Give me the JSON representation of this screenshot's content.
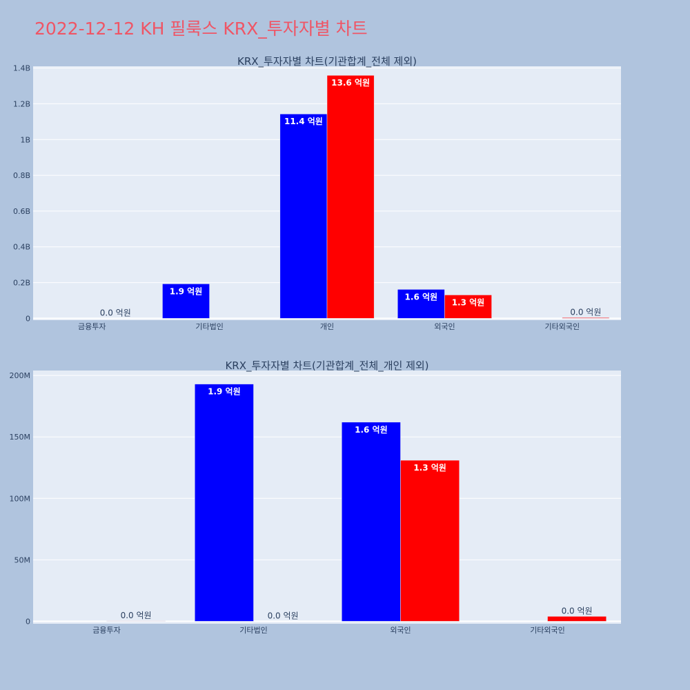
{
  "page": {
    "title": "2022-12-12 KH 필룩스 KRX_투자자별 차트"
  },
  "chart_data": [
    {
      "type": "bar",
      "title": "KRX_투자자별 차트(기관합계_전체 제외)",
      "categories": [
        "금융투자",
        "기타법인",
        "개인",
        "외국인",
        "기타외국인"
      ],
      "series": [
        {
          "color": "#0000ff",
          "values": [
            0,
            193000000,
            1143000000,
            162000000,
            0
          ],
          "labels": [
            "",
            "1.9 억원",
            "11.4 억원",
            "1.6 억원",
            ""
          ]
        },
        {
          "color": "#ff0000",
          "values": [
            0,
            0,
            1359000000,
            131000000,
            4000000
          ],
          "labels": [
            "0.0 억원",
            "",
            "13.6 억원",
            "1.3 억원",
            "0.0 억원"
          ]
        }
      ],
      "ylim": [
        -10000000,
        1410000000
      ],
      "yticks": [
        0,
        200000000,
        400000000,
        600000000,
        800000000,
        1000000000,
        1200000000,
        1400000000
      ],
      "yticklabels": [
        "0",
        "0.2B",
        "0.4B",
        "0.6B",
        "0.8B",
        "1B",
        "1.2B",
        "1.4B"
      ]
    },
    {
      "type": "bar",
      "title": "KRX_투자자별 차트(기관합계_전체_개인 제외)",
      "categories": [
        "금융투자",
        "기타법인",
        "외국인",
        "기타외국인"
      ],
      "series": [
        {
          "color": "#0000ff",
          "values": [
            0,
            193000000,
            162000000,
            0
          ],
          "labels": [
            "",
            "1.9 억원",
            "1.6 억원",
            ""
          ]
        },
        {
          "color": "#ff0000",
          "values": [
            300000,
            0,
            131000000,
            4000000
          ],
          "labels": [
            "0.0 억원",
            "0.0 억원",
            "1.3 억원",
            "0.0 억원"
          ]
        }
      ],
      "ylim": [
        -2000000,
        204000000
      ],
      "yticks": [
        0,
        50000000,
        100000000,
        150000000,
        200000000
      ],
      "yticklabels": [
        "0",
        "50M",
        "100M",
        "150M",
        "200M"
      ]
    }
  ]
}
